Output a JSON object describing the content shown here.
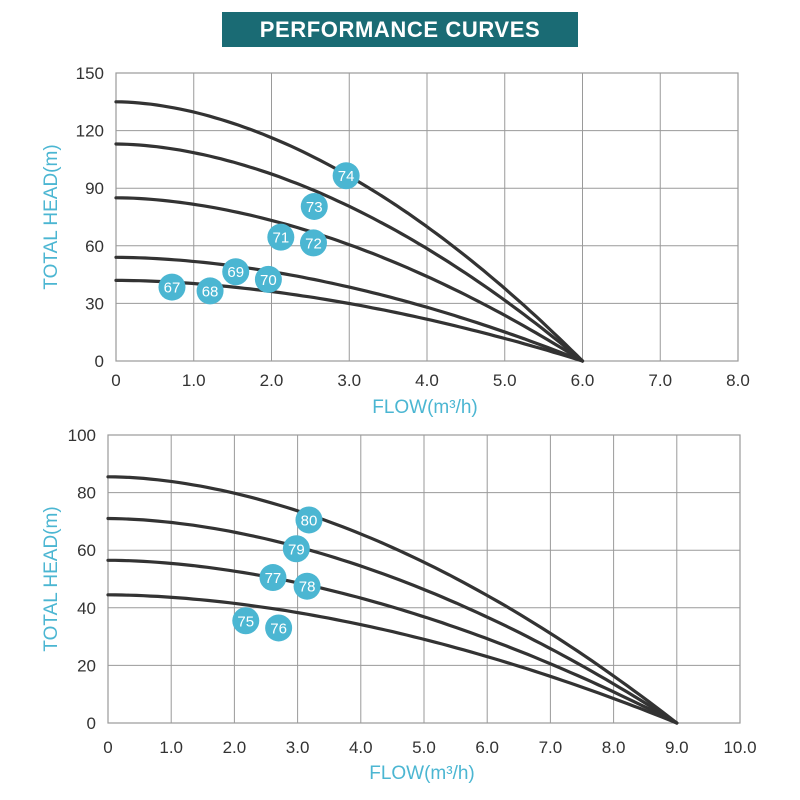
{
  "title": "PERFORMANCE CURVES",
  "colors": {
    "banner": "#1a6b74",
    "axis_label": "#4bb6d2",
    "marker": "#4bb6d2",
    "curve": "#333333",
    "grid": "#9a9a9a"
  },
  "chart_data": [
    {
      "type": "line",
      "xlabel": "FLOW(m³/h)",
      "ylabel": "TOTAL HEAD(m)",
      "xlim": [
        0,
        8
      ],
      "ylim": [
        0,
        150
      ],
      "x_ticks": [
        "0",
        "1.0",
        "2.0",
        "3.0",
        "4.0",
        "5.0",
        "6.0",
        "7.0",
        "8.0"
      ],
      "y_ticks": [
        "0",
        "30",
        "60",
        "90",
        "120",
        "150"
      ],
      "grid": true,
      "series": [
        {
          "name": "67",
          "shutoff_head": 42,
          "max_flow": 6.0,
          "values": [
            [
              0,
              42
            ],
            [
              1,
              39
            ],
            [
              2,
              33.5
            ],
            [
              3,
              26.5
            ],
            [
              4,
              18
            ],
            [
              5,
              9
            ],
            [
              6,
              0
            ]
          ]
        },
        {
          "name": "68",
          "shutoff_head": 42,
          "max_flow": 6.0,
          "values": [
            [
              0,
              42
            ],
            [
              1,
              39
            ],
            [
              2,
              33.5
            ],
            [
              3,
              26.5
            ],
            [
              4,
              18
            ],
            [
              5,
              9
            ],
            [
              6,
              0
            ]
          ]
        },
        {
          "name": "69",
          "shutoff_head": 54,
          "max_flow": 6.0,
          "values": [
            [
              0,
              54
            ],
            [
              1,
              50
            ],
            [
              2,
              43
            ],
            [
              3,
              34
            ],
            [
              4,
              23.5
            ],
            [
              5,
              12
            ],
            [
              6,
              0
            ]
          ]
        },
        {
          "name": "70",
          "shutoff_head": 54,
          "max_flow": 6.0,
          "values": [
            [
              0,
              54
            ],
            [
              1,
              50
            ],
            [
              2,
              43
            ],
            [
              3,
              34
            ],
            [
              4,
              23.5
            ],
            [
              5,
              12
            ],
            [
              6,
              0
            ]
          ]
        },
        {
          "name": "71",
          "shutoff_head": 85,
          "max_flow": 6.0,
          "values": [
            [
              0,
              85
            ],
            [
              1,
              78
            ],
            [
              2,
              67
            ],
            [
              3,
              53
            ],
            [
              4,
              36.5
            ],
            [
              5,
              18.5
            ],
            [
              6,
              0
            ]
          ]
        },
        {
          "name": "72",
          "shutoff_head": 85,
          "max_flow": 6.0,
          "values": [
            [
              0,
              85
            ],
            [
              1,
              78
            ],
            [
              2,
              67
            ],
            [
              3,
              53
            ],
            [
              4,
              36.5
            ],
            [
              5,
              18.5
            ],
            [
              6,
              0
            ]
          ]
        },
        {
          "name": "73",
          "shutoff_head": 113,
          "max_flow": 6.0,
          "values": [
            [
              0,
              113
            ],
            [
              1,
              104
            ],
            [
              2,
              90
            ],
            [
              3,
              71
            ],
            [
              4,
              49
            ],
            [
              5,
              25
            ],
            [
              6,
              0
            ]
          ]
        },
        {
          "name": "74",
          "shutoff_head": 135,
          "max_flow": 6.0,
          "values": [
            [
              0,
              135
            ],
            [
              1,
              124
            ],
            [
              2,
              107
            ],
            [
              3,
              85
            ],
            [
              4,
              58
            ],
            [
              5,
              30
            ],
            [
              6,
              0
            ]
          ]
        }
      ],
      "markers": [
        {
          "label": "67",
          "x": 0.72,
          "y": 38.5
        },
        {
          "label": "68",
          "x": 1.21,
          "y": 36.5
        },
        {
          "label": "69",
          "x": 1.54,
          "y": 46.5
        },
        {
          "label": "70",
          "x": 1.96,
          "y": 42.5
        },
        {
          "label": "71",
          "x": 2.12,
          "y": 64.5
        },
        {
          "label": "72",
          "x": 2.54,
          "y": 61.5
        },
        {
          "label": "73",
          "x": 2.55,
          "y": 80.5
        },
        {
          "label": "74",
          "x": 2.96,
          "y": 96.5
        }
      ]
    },
    {
      "type": "line",
      "xlabel": "FLOW(m³/h)",
      "ylabel": "TOTAL HEAD(m)",
      "xlim": [
        0,
        10
      ],
      "ylim": [
        0,
        100
      ],
      "x_ticks": [
        "0",
        "1.0",
        "2.0",
        "3.0",
        "4.0",
        "5.0",
        "6.0",
        "7.0",
        "8.0",
        "9.0",
        "10.0"
      ],
      "y_ticks": [
        "0",
        "20",
        "40",
        "60",
        "80",
        "100"
      ],
      "grid": true,
      "series": [
        {
          "name": "75",
          "shutoff_head": 44.5,
          "max_flow": 9.0,
          "values": [
            [
              0,
              44.5
            ],
            [
              1.5,
              40.5
            ],
            [
              3,
              34
            ],
            [
              4.5,
              27
            ],
            [
              6,
              19
            ],
            [
              7.5,
              10
            ],
            [
              9,
              0
            ]
          ]
        },
        {
          "name": "76",
          "shutoff_head": 44.5,
          "max_flow": 9.0,
          "values": [
            [
              0,
              44.5
            ],
            [
              1.5,
              40.5
            ],
            [
              3,
              34
            ],
            [
              4.5,
              27
            ],
            [
              6,
              19
            ],
            [
              7.5,
              10
            ],
            [
              9,
              0
            ]
          ]
        },
        {
          "name": "77",
          "shutoff_head": 56.5,
          "max_flow": 9.0,
          "values": [
            [
              0,
              56.5
            ],
            [
              1.5,
              53
            ],
            [
              3,
              47
            ],
            [
              4.5,
              38.5
            ],
            [
              6,
              28
            ],
            [
              7.5,
              15
            ],
            [
              9,
              0
            ]
          ]
        },
        {
          "name": "78",
          "shutoff_head": 56.5,
          "max_flow": 9.0,
          "values": [
            [
              0,
              56.5
            ],
            [
              1.5,
              53
            ],
            [
              3,
              47
            ],
            [
              4.5,
              38.5
            ],
            [
              6,
              28
            ],
            [
              7.5,
              15
            ],
            [
              9,
              0
            ]
          ]
        },
        {
          "name": "79",
          "shutoff_head": 71,
          "max_flow": 9.0,
          "values": [
            [
              0,
              71
            ],
            [
              1.5,
              67
            ],
            [
              3,
              60
            ],
            [
              4.5,
              49.5
            ],
            [
              6,
              36.5
            ],
            [
              7.5,
              20
            ],
            [
              9,
              0
            ]
          ]
        },
        {
          "name": "80",
          "shutoff_head": 85.5,
          "max_flow": 9.0,
          "values": [
            [
              0,
              85.5
            ],
            [
              1.5,
              80.5
            ],
            [
              3,
              72
            ],
            [
              4.5,
              60
            ],
            [
              6,
              44.5
            ],
            [
              7.5,
              25
            ],
            [
              9,
              0
            ]
          ]
        }
      ],
      "markers": [
        {
          "label": "75",
          "x": 2.18,
          "y": 35.5
        },
        {
          "label": "76",
          "x": 2.7,
          "y": 33
        },
        {
          "label": "77",
          "x": 2.61,
          "y": 50.5
        },
        {
          "label": "78",
          "x": 3.15,
          "y": 47.5
        },
        {
          "label": "79",
          "x": 2.98,
          "y": 60.5
        },
        {
          "label": "80",
          "x": 3.18,
          "y": 70.5
        }
      ]
    }
  ]
}
